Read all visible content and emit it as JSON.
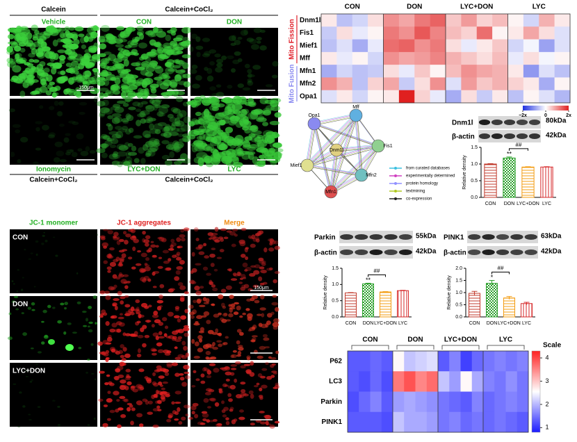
{
  "calcein": {
    "header_left": "Calcein",
    "header_right": "Calcein+CoCl₂",
    "labels": [
      "Vehicle",
      "CON",
      "DON",
      "Ionomycin",
      "LYC+DON",
      "LYC"
    ],
    "footer": [
      "Calcein+CoCl₂",
      "Calcein+CoCl₂"
    ],
    "scale_bar": "150μm"
  },
  "jc1": {
    "columns": [
      "JC-1 monomer",
      "JC-1 aggregates",
      "Merge"
    ],
    "rows": [
      "CON",
      "DON",
      "LYC+DON"
    ],
    "scale_bar": "150μm"
  },
  "network": {
    "nodes": [
      "Opa1",
      "Mff",
      "Fis1",
      "Dnm1l",
      "Mief1",
      "Mfn2",
      "Mfn1"
    ],
    "legend": [
      {
        "label": "from curated databases",
        "color": "#3cc0e0"
      },
      {
        "label": "experimentally determined",
        "color": "#d040c0"
      },
      {
        "label": "protein homology",
        "color": "#9090ff"
      },
      {
        "label": "textmining",
        "color": "#b0c820"
      },
      {
        "label": "co-expression",
        "color": "#222222"
      }
    ]
  },
  "blots": [
    {
      "target": "Dnm1l",
      "target_kda": "80kDa",
      "control": "β-actin",
      "control_kda": "42kDa"
    },
    {
      "target": "Parkin",
      "target_kda": "55kDa",
      "control": "β-actin",
      "control_kda": "42kDa"
    },
    {
      "target": "PINK1",
      "target_kda": "63kDa",
      "control": "β-actin",
      "control_kda": "42kDa"
    }
  ],
  "chart_data": [
    {
      "type": "heatmap",
      "groups": [
        "CON",
        "DON",
        "LYC+DON",
        "LYC"
      ],
      "row_groups": [
        {
          "name": "Mito Fission",
          "color": "#e0202a",
          "rows": [
            "Dnm1l",
            "Fis1",
            "Mief1",
            "Mff"
          ]
        },
        {
          "name": "Mito Fusion",
          "color": "#8a8af0",
          "rows": [
            "Mfn1",
            "Mfn2",
            "Opa1"
          ]
        }
      ],
      "values": [
        [
          0.2,
          -0.6,
          -0.4,
          0.3,
          1.0,
          0.8,
          1.2,
          1.4,
          0.5,
          0.9,
          0.4,
          0.6,
          0.1,
          -0.4,
          0.7,
          0.2
        ],
        [
          -0.5,
          0.3,
          -0.2,
          0.1,
          1.2,
          1.0,
          1.5,
          1.1,
          0.6,
          0.4,
          1.3,
          0.1,
          0.2,
          0.8,
          0.3,
          -0.3
        ],
        [
          -0.6,
          -0.3,
          -0.8,
          -0.2,
          1.3,
          1.4,
          1.0,
          1.2,
          0.3,
          -0.2,
          0.2,
          0.5,
          -0.4,
          -0.1,
          -0.9,
          -0.3
        ],
        [
          0.2,
          -0.2,
          0.1,
          -0.4,
          1.0,
          0.8,
          0.9,
          1.1,
          0.7,
          0.5,
          0.3,
          0.6,
          -0.2,
          0.3,
          -0.1,
          0.1
        ],
        [
          -0.8,
          -0.4,
          -0.6,
          -0.5,
          0.3,
          -0.2,
          0.5,
          0.1,
          0.6,
          1.0,
          0.8,
          0.7,
          0.2,
          -1.0,
          -0.3,
          -0.6
        ],
        [
          1.0,
          0.7,
          -0.6,
          0.4,
          0.8,
          -0.5,
          0.3,
          1.0,
          -0.3,
          0.9,
          0.5,
          0.7,
          0.4,
          0.2,
          -0.8,
          0.1
        ],
        [
          -0.3,
          0.2,
          -0.4,
          0.1,
          0.2,
          2.0,
          0.4,
          -0.2,
          -0.8,
          0.3,
          -0.5,
          0.2,
          -0.6,
          0.1,
          -0.3,
          -0.7
        ]
      ],
      "clim": [
        -2,
        2
      ],
      "colors": [
        "#2030e0",
        "#ffffff",
        "#e02020"
      ],
      "colorbar_ticks": [
        {
          "value": -2,
          "label": "−2x"
        },
        0,
        {
          "value": 2,
          "label": "2x"
        }
      ]
    },
    {
      "type": "bar",
      "categories": [
        "CON",
        "DON",
        "LYC+DON",
        "LYC"
      ],
      "values": [
        1.0,
        1.18,
        0.91,
        0.91
      ],
      "errors": [
        0.01,
        0.03,
        0.01,
        0.01
      ],
      "ylabel": "Relative density",
      "ylim": [
        0,
        1.5
      ],
      "yticks": [
        {
          "value": 0,
          "label": "0.0"
        },
        {
          "value": 0.5,
          "label": "0.5"
        },
        {
          "value": 1,
          "label": "1.0"
        },
        {
          "value": 1.5,
          "label": "1.5"
        }
      ],
      "colors": [
        "#c0392b",
        "#2ca02c",
        "#f39c12",
        "#d62728"
      ],
      "annotations": [
        "**",
        "##"
      ]
    },
    {
      "type": "bar",
      "categories": [
        "CON",
        "DON",
        "LYC+DON",
        "LYC"
      ],
      "values": [
        0.74,
        1.02,
        0.77,
        0.81
      ],
      "errors": [
        0.01,
        0.02,
        0.01,
        0.01
      ],
      "ylabel": "Relative density",
      "ylim": [
        0,
        1.5
      ],
      "yticks": [
        {
          "value": 0,
          "label": "0.0"
        },
        {
          "value": 0.5,
          "label": "0.5"
        },
        {
          "value": 1,
          "label": "1.0"
        },
        {
          "value": 1.5,
          "label": "1.5"
        }
      ],
      "colors": [
        "#c0392b",
        "#2ca02c",
        "#f39c12",
        "#d62728"
      ],
      "annotations": [
        "**",
        "##"
      ]
    },
    {
      "type": "bar",
      "categories": [
        "CON",
        "DON",
        "LYC+DON",
        "LYC"
      ],
      "values": [
        0.97,
        1.38,
        0.78,
        0.55
      ],
      "errors": [
        0.08,
        0.12,
        0.06,
        0.05
      ],
      "ylabel": "Relative density",
      "ylim": [
        0,
        2
      ],
      "yticks": [
        {
          "value": 0,
          "label": "0.0"
        },
        {
          "value": 0.5,
          "label": "0.5"
        },
        {
          "value": 1,
          "label": "1.0"
        },
        {
          "value": 1.5,
          "label": "1.5"
        },
        {
          "value": 2,
          "label": "2.0"
        }
      ],
      "colors": [
        "#c0392b",
        "#2ca02c",
        "#f39c12",
        "#d62728"
      ],
      "annotations": [
        "*",
        "##"
      ]
    },
    {
      "type": "heatmap",
      "groups": [
        "CON",
        "DON",
        "LYC+DON",
        "LYC"
      ],
      "rows": [
        "P62",
        "LC3",
        "Parkin",
        "PINK1"
      ],
      "values": [
        [
          1.3,
          1.3,
          1.4,
          1.3,
          2.6,
          2.1,
          2.2,
          2.3,
          1.3,
          1.6,
          1.1,
          1.4,
          1.5,
          1.6,
          1.5,
          1.6
        ],
        [
          1.3,
          1.2,
          1.4,
          1.2,
          3.6,
          3.9,
          3.5,
          3.7,
          2.1,
          1.8,
          2.6,
          1.9,
          1.6,
          1.5,
          1.7,
          1.5
        ],
        [
          1.2,
          1.4,
          1.6,
          1.3,
          1.8,
          1.9,
          1.8,
          1.7,
          1.5,
          1.4,
          1.3,
          1.6,
          1.4,
          1.5,
          1.6,
          1.5
        ],
        [
          1.3,
          1.3,
          1.3,
          1.2,
          2.1,
          1.9,
          1.9,
          1.8,
          1.5,
          1.6,
          1.4,
          1.5,
          1.4,
          1.5,
          1.4,
          1.3
        ]
      ],
      "clim": [
        0.8,
        4.3
      ],
      "colors": [
        "#1a1aff",
        "#ffffff",
        "#ff2020"
      ],
      "colorbar_title": "Scale",
      "colorbar_ticks": [
        1,
        2,
        3,
        4
      ]
    }
  ]
}
